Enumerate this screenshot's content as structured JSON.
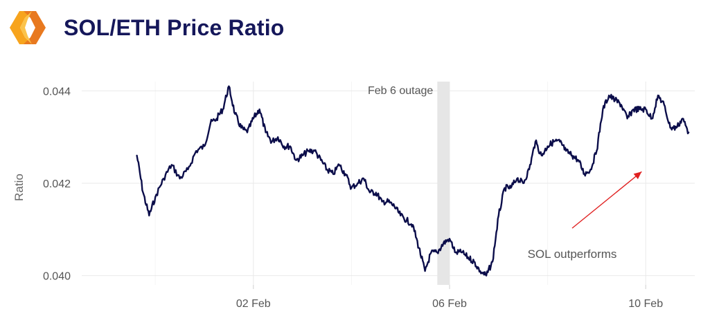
{
  "header": {
    "title": "SOL/ETH Price Ratio",
    "logo_colors": [
      "#f7a41d",
      "#e8791f",
      "#fbc34a"
    ]
  },
  "chart_data": {
    "type": "line",
    "title": "SOL/ETH Price Ratio",
    "ylabel": "Ratio",
    "xlabel": "",
    "xlim": [
      "2022-01-29T12:00",
      "2022-02-11T00:00"
    ],
    "ylim": [
      0.0398,
      0.0442
    ],
    "y_ticks": [
      0.04,
      0.042,
      0.044
    ],
    "y_tick_labels": [
      "0.040",
      "0.042",
      "0.044"
    ],
    "x_ticks": [
      "2022-02-02",
      "2022-02-06",
      "2022-02-10"
    ],
    "x_tick_labels": [
      "02 Feb",
      "06 Feb",
      "10 Feb"
    ],
    "grid": true,
    "line_color": "#0b0d4a",
    "series": [
      {
        "x": [
          "2022-01-30T15:00",
          "2022-01-30T18:00",
          "2022-01-30T21:00",
          "2022-01-31T00:00",
          "2022-01-31T04:00",
          "2022-01-31T08:00",
          "2022-01-31T12:00",
          "2022-01-31T16:00",
          "2022-01-31T20:00",
          "2022-02-01T00:00",
          "2022-02-01T03:00",
          "2022-02-01T06:00",
          "2022-02-01T09:00",
          "2022-02-01T12:00",
          "2022-02-01T15:00",
          "2022-02-01T18:00",
          "2022-02-01T21:00",
          "2022-02-02T00:00",
          "2022-02-02T03:00",
          "2022-02-02T06:00",
          "2022-02-02T09:00",
          "2022-02-02T12:00",
          "2022-02-02T15:00",
          "2022-02-02T18:00",
          "2022-02-02T21:00",
          "2022-02-03T00:00",
          "2022-02-03T03:00",
          "2022-02-03T06:00",
          "2022-02-03T09:00",
          "2022-02-03T12:00",
          "2022-02-03T15:00",
          "2022-02-03T18:00",
          "2022-02-03T21:00",
          "2022-02-04T00:00",
          "2022-02-04T03:00",
          "2022-02-04T06:00",
          "2022-02-04T09:00",
          "2022-02-04T12:00",
          "2022-02-04T15:00",
          "2022-02-04T18:00",
          "2022-02-04T21:00",
          "2022-02-05T00:00",
          "2022-02-05T03:00",
          "2022-02-05T06:00",
          "2022-02-05T09:00",
          "2022-02-05T12:00",
          "2022-02-05T15:00",
          "2022-02-05T18:00",
          "2022-02-05T21:00",
          "2022-02-06T00:00",
          "2022-02-06T03:00",
          "2022-02-06T06:00",
          "2022-02-06T09:00",
          "2022-02-06T12:00",
          "2022-02-06T15:00",
          "2022-02-06T18:00",
          "2022-02-06T21:00",
          "2022-02-07T00:00",
          "2022-02-07T03:00",
          "2022-02-07T06:00",
          "2022-02-07T09:00",
          "2022-02-07T12:00",
          "2022-02-07T15:00",
          "2022-02-07T18:00",
          "2022-02-07T21:00",
          "2022-02-08T00:00",
          "2022-02-08T03:00",
          "2022-02-08T06:00",
          "2022-02-08T09:00",
          "2022-02-08T12:00",
          "2022-02-08T15:00",
          "2022-02-08T18:00",
          "2022-02-08T21:00",
          "2022-02-09T00:00",
          "2022-02-09T03:00",
          "2022-02-09T06:00",
          "2022-02-09T09:00",
          "2022-02-09T12:00",
          "2022-02-09T15:00",
          "2022-02-09T18:00",
          "2022-02-09T21:00",
          "2022-02-10T00:00",
          "2022-02-10T03:00",
          "2022-02-10T06:00",
          "2022-02-10T09:00",
          "2022-02-10T12:00",
          "2022-02-10T15:00",
          "2022-02-10T18:00",
          "2022-02-10T21:00"
        ],
        "y": [
          0.0426,
          0.0418,
          0.0413,
          0.0417,
          0.0421,
          0.0424,
          0.0421,
          0.0423,
          0.0427,
          0.0428,
          0.0433,
          0.0434,
          0.0436,
          0.0441,
          0.0435,
          0.0432,
          0.0431,
          0.0434,
          0.0436,
          0.0431,
          0.0429,
          0.043,
          0.0428,
          0.0428,
          0.0425,
          0.0426,
          0.0427,
          0.0427,
          0.0425,
          0.0423,
          0.0422,
          0.0424,
          0.0422,
          0.0419,
          0.042,
          0.0421,
          0.0418,
          0.0418,
          0.0416,
          0.0416,
          0.0415,
          0.0413,
          0.0412,
          0.0411,
          0.0406,
          0.0401,
          0.0405,
          0.0405,
          0.0407,
          0.0408,
          0.0405,
          0.0405,
          0.0404,
          0.0403,
          0.0401,
          0.04,
          0.0403,
          0.0413,
          0.0419,
          0.0419,
          0.0421,
          0.042,
          0.0423,
          0.0429,
          0.0426,
          0.0428,
          0.0429,
          0.0429,
          0.0427,
          0.0426,
          0.0425,
          0.0422,
          0.0423,
          0.0427,
          0.0436,
          0.0439,
          0.0438,
          0.0437,
          0.0434,
          0.0436,
          0.0436,
          0.0436,
          0.0434,
          0.0439,
          0.0437,
          0.0432,
          0.0432,
          0.0434,
          0.0431
        ]
      }
    ],
    "shaded_regions": [
      {
        "label": "Feb 6 outage",
        "x_start": "2022-02-05T18:00",
        "x_end": "2022-02-06T00:00"
      }
    ],
    "annotations": [
      {
        "text": "SOL outperforms",
        "arrow_to": {
          "x": "2022-02-09T22:00",
          "y": 0.04225
        }
      }
    ]
  }
}
